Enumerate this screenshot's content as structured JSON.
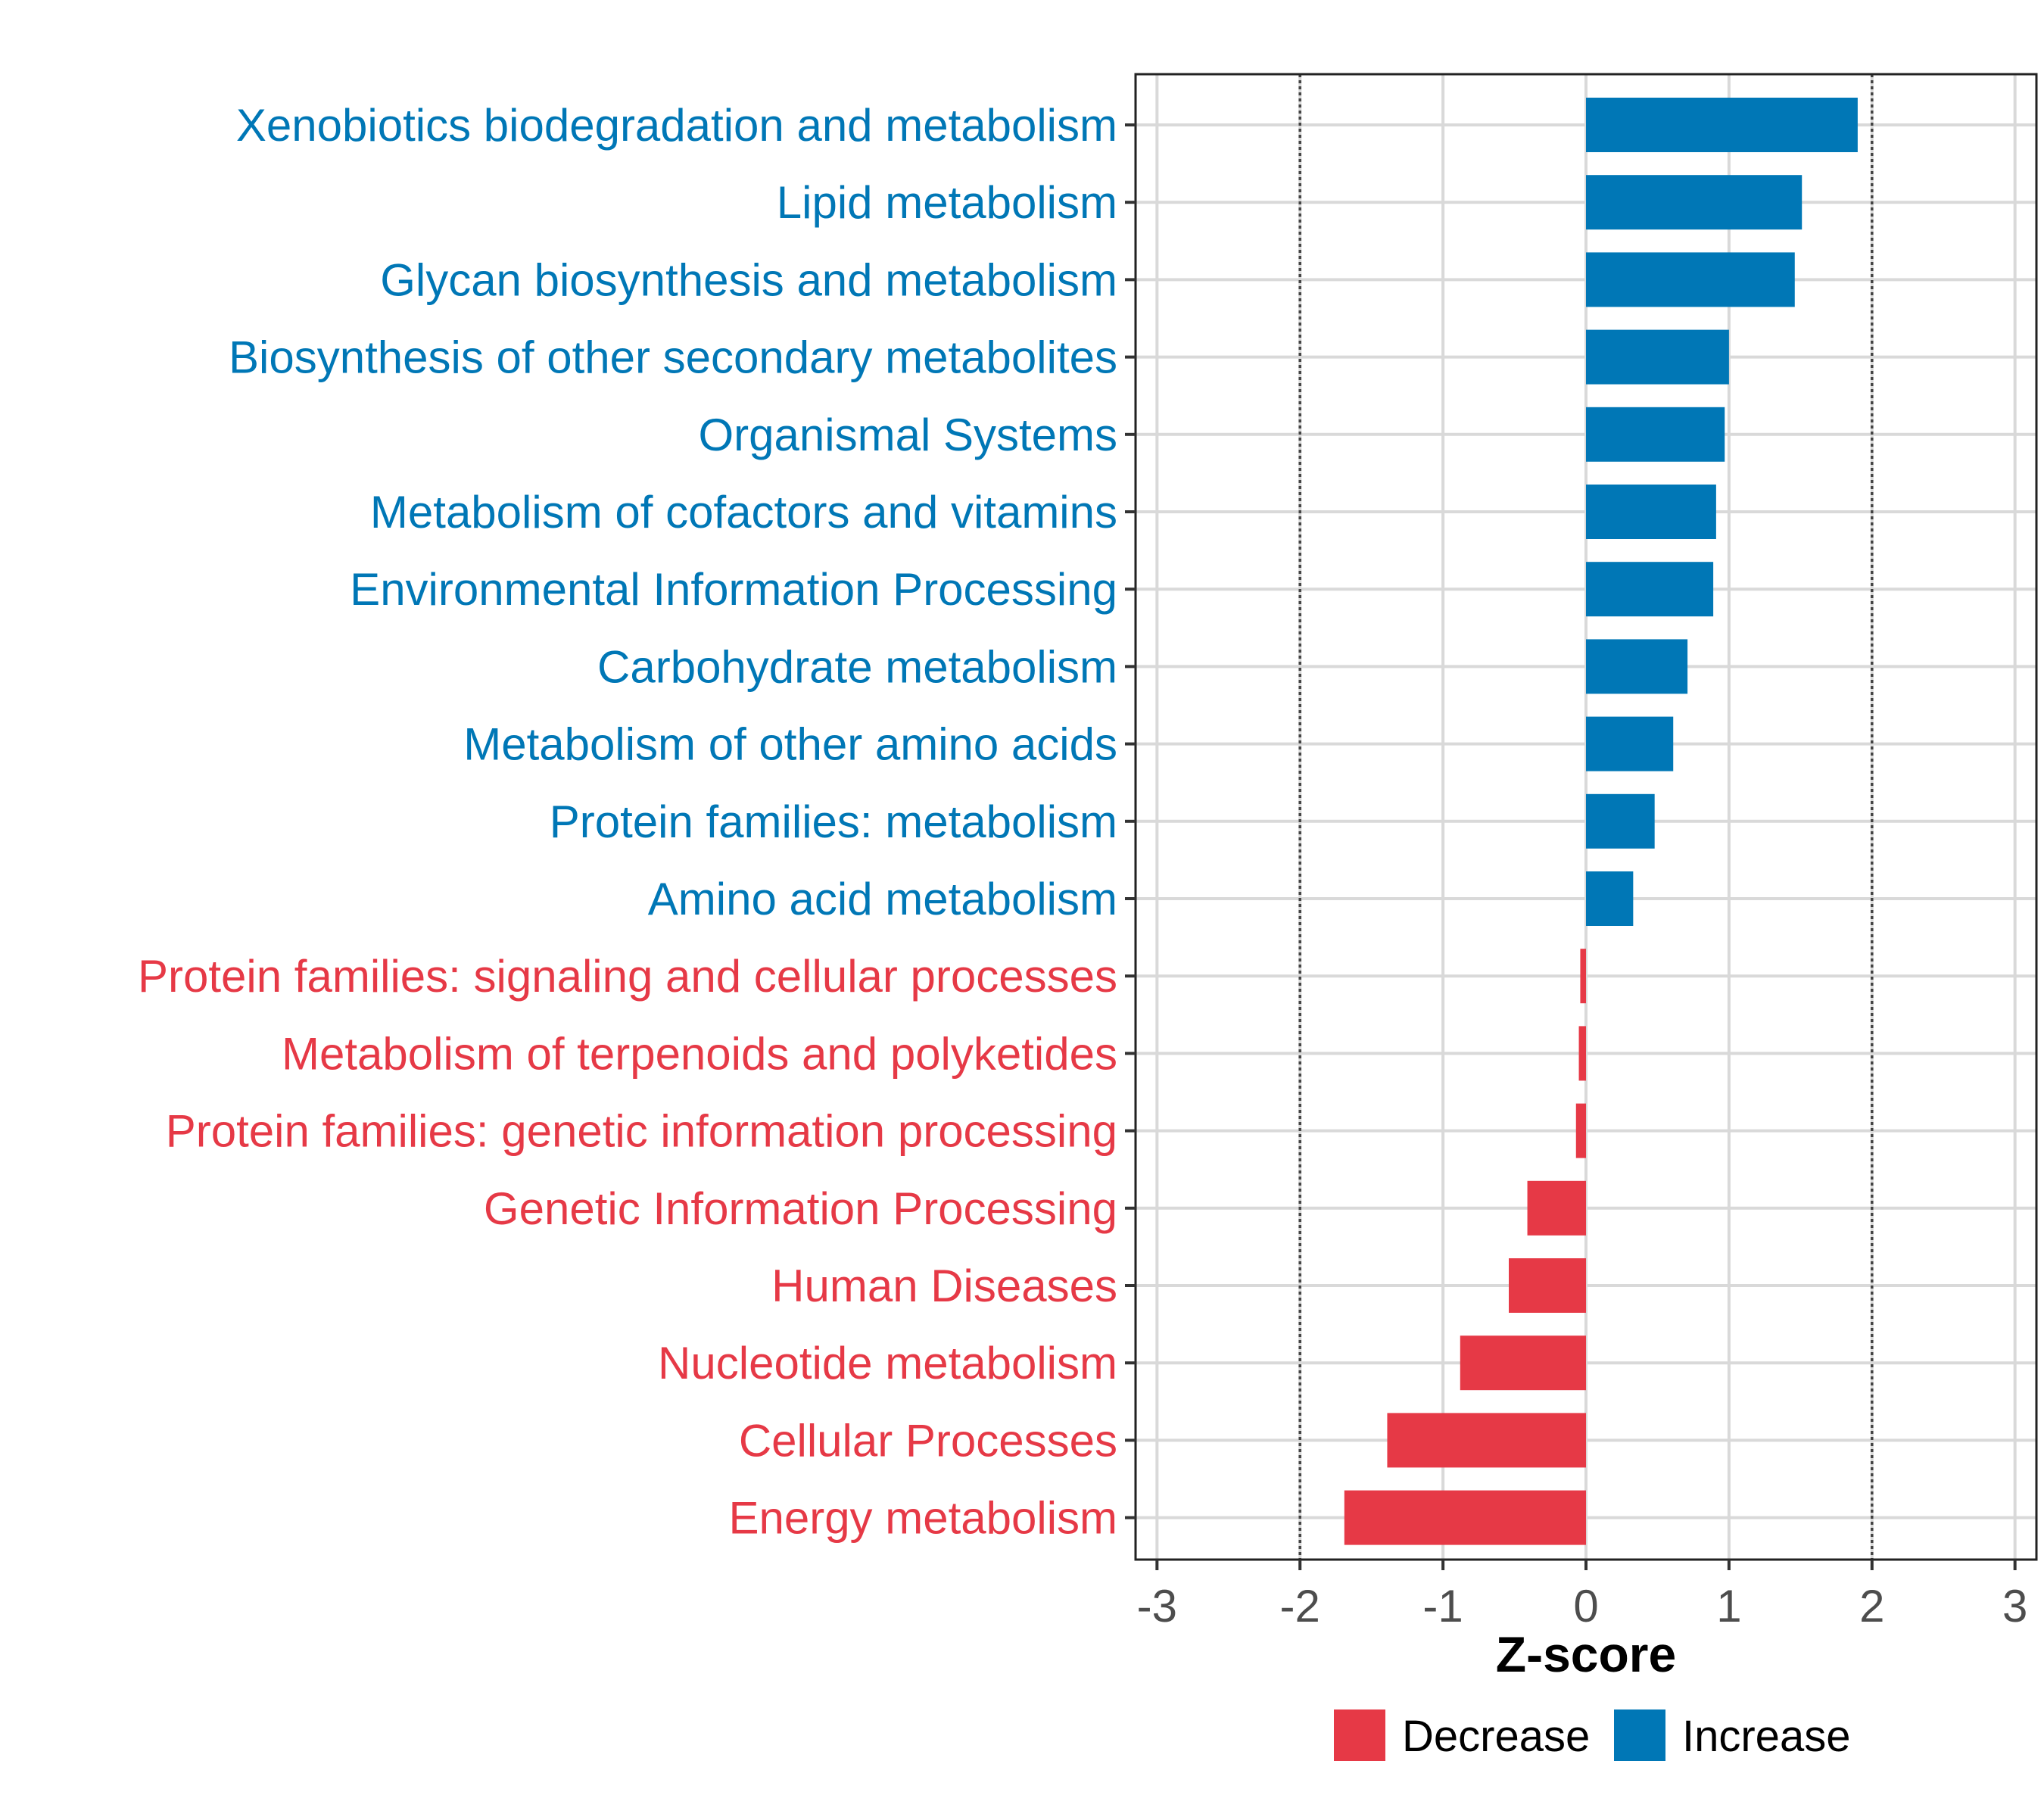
{
  "chart_data": {
    "type": "bar",
    "orientation": "horizontal",
    "xlabel": "Z-score",
    "xlim": [
      -3.15,
      3.15
    ],
    "xticks": [
      -3,
      -2,
      -1,
      0,
      1,
      2,
      3
    ],
    "xtick_labels": [
      "-3",
      "-2",
      "-1",
      "0",
      "1",
      "2",
      "3"
    ],
    "threshold_lines": [
      -2,
      2
    ],
    "grid": true,
    "legend_position": "bottom",
    "series": [
      {
        "name": "Decrease",
        "color": "#E63946"
      },
      {
        "name": "Increase",
        "color": "#0077B6"
      }
    ],
    "categories": [
      "Xenobiotics biodegradation and metabolism",
      "Lipid metabolism",
      "Glycan biosynthesis and metabolism",
      "Biosynthesis of other secondary metabolites",
      "Organismal Systems",
      "Metabolism of cofactors and vitamins",
      "Environmental Information Processing",
      "Carbohydrate metabolism",
      "Metabolism of other amino acids",
      "Protein families: metabolism",
      "Amino acid metabolism",
      "Protein families: signaling and cellular processes",
      "Metabolism of terpenoids and polyketides",
      "Protein families: genetic information processing",
      "Genetic Information Processing",
      "Human Diseases",
      "Nucleotide metabolism",
      "Cellular Processes",
      "Energy metabolism"
    ],
    "values": [
      1.9,
      1.51,
      1.46,
      1.0,
      0.97,
      0.91,
      0.89,
      0.71,
      0.61,
      0.48,
      0.33,
      -0.04,
      -0.05,
      -0.07,
      -0.41,
      -0.54,
      -0.88,
      -1.39,
      -1.69
    ],
    "groups": [
      "Increase",
      "Increase",
      "Increase",
      "Increase",
      "Increase",
      "Increase",
      "Increase",
      "Increase",
      "Increase",
      "Increase",
      "Increase",
      "Decrease",
      "Decrease",
      "Decrease",
      "Decrease",
      "Decrease",
      "Decrease",
      "Decrease",
      "Decrease"
    ]
  }
}
